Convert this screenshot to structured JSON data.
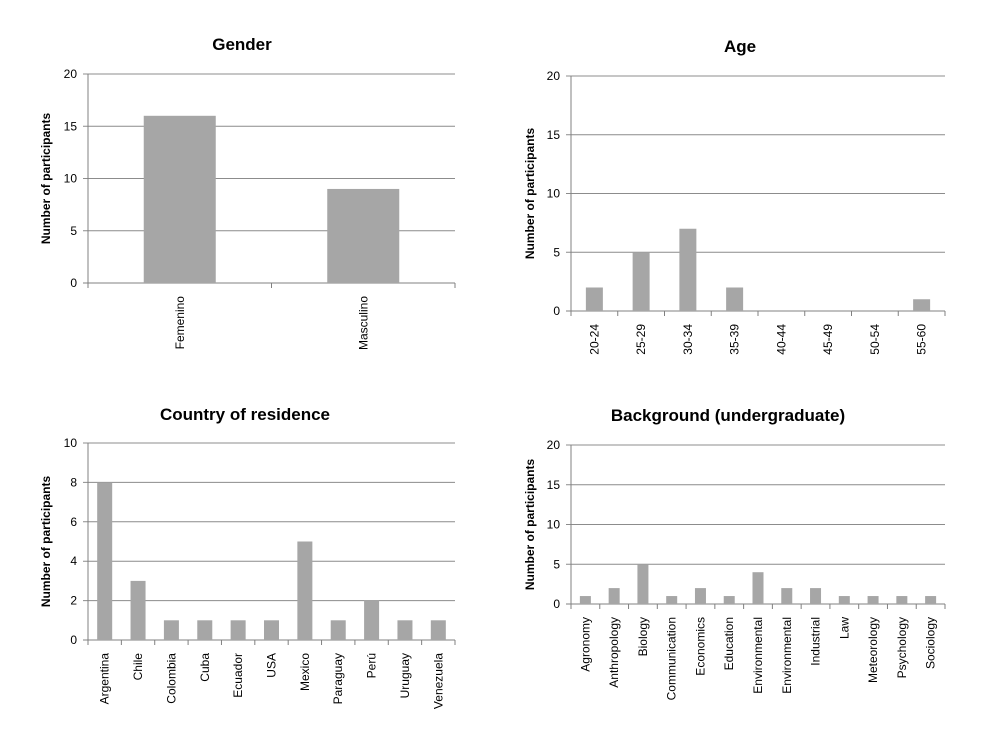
{
  "chart_data": [
    {
      "type": "bar",
      "title": "Gender",
      "ylabel": "Number of participants",
      "xlabel": "",
      "ylim": [
        0,
        20
      ],
      "yticks": [
        0,
        5,
        10,
        15,
        20
      ],
      "grid": true,
      "bar_color": "#a6a6a6",
      "categories": [
        "Femenino",
        "Masculino"
      ],
      "values": [
        16,
        9
      ]
    },
    {
      "type": "bar",
      "title": "Age",
      "ylabel": "Number of participants",
      "xlabel": "",
      "ylim": [
        0,
        20
      ],
      "yticks": [
        0,
        5,
        10,
        15,
        20
      ],
      "grid": true,
      "bar_color": "#a6a6a6",
      "categories": [
        "20-24",
        "25-29",
        "30-34",
        "35-39",
        "40-44",
        "45-49",
        "50-54",
        "55-60"
      ],
      "values": [
        2,
        5,
        7,
        2,
        0,
        0,
        0,
        1
      ]
    },
    {
      "type": "bar",
      "title": "Country of residence",
      "ylabel": "Number of participants",
      "xlabel": "",
      "ylim": [
        0,
        10
      ],
      "yticks": [
        0,
        2,
        4,
        6,
        8,
        10
      ],
      "grid": true,
      "bar_color": "#a6a6a6",
      "categories": [
        "Argentina",
        "Chile",
        "Colombia",
        "Cuba",
        "Ecuador",
        "USA",
        "Mexico",
        "Paraguay",
        "Perú",
        "Uruguay",
        "Venezuela"
      ],
      "values": [
        8,
        3,
        1,
        1,
        1,
        1,
        5,
        1,
        2,
        1,
        1
      ]
    },
    {
      "type": "bar",
      "title": "Background (undergraduate)",
      "ylabel": "Number of participants",
      "xlabel": "",
      "ylim": [
        0,
        20
      ],
      "yticks": [
        0,
        5,
        10,
        15,
        20
      ],
      "grid": true,
      "bar_color": "#a6a6a6",
      "categories": [
        "Agronomy",
        "Anthropology",
        "Biology",
        "Communication",
        "Economics",
        "Education",
        "Environmental",
        "Environmental",
        "Industrial",
        "Law",
        "Meteorology",
        "Psychology",
        "Sociology"
      ],
      "values": [
        1,
        2,
        5,
        1,
        2,
        1,
        4,
        2,
        2,
        1,
        1,
        1,
        1
      ]
    }
  ]
}
